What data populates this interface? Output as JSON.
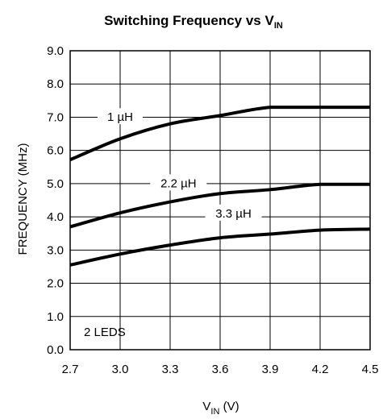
{
  "chart_data": {
    "type": "line",
    "title": "Switching Frequency vs V",
    "title_subscript": "IN",
    "xlabel": "V",
    "xlabel_subscript": "IN",
    "xlabel_unit": " (V)",
    "ylabel": "FREQUENCY (MHz)",
    "xlim": [
      2.7,
      4.5
    ],
    "ylim": [
      0.0,
      9.0
    ],
    "x_ticks": [
      2.7,
      3.0,
      3.3,
      3.6,
      3.9,
      4.2,
      4.5
    ],
    "x_tick_labels": [
      "2.7",
      "3.0",
      "3.3",
      "3.6",
      "3.9",
      "4.2",
      "4.5"
    ],
    "y_ticks": [
      0,
      1,
      2,
      3,
      4,
      5,
      6,
      7,
      8,
      9
    ],
    "y_tick_labels": [
      "0.0",
      "1.0",
      "2.0",
      "3.0",
      "4.0",
      "5.0",
      "6.0",
      "7.0",
      "8.0",
      "9.0"
    ],
    "grid": true,
    "annotation": "2 LEDS",
    "series": [
      {
        "name": "1 µH",
        "x": [
          2.7,
          3.0,
          3.3,
          3.6,
          3.9,
          4.2,
          4.5
        ],
        "y": [
          5.72,
          6.35,
          6.8,
          7.05,
          7.3,
          7.3,
          7.3
        ]
      },
      {
        "name": "2.2 µH",
        "x": [
          2.7,
          3.0,
          3.3,
          3.6,
          3.9,
          4.2,
          4.5
        ],
        "y": [
          3.7,
          4.12,
          4.45,
          4.7,
          4.82,
          4.98,
          4.98
        ]
      },
      {
        "name": "3.3 µH",
        "x": [
          2.7,
          3.0,
          3.3,
          3.6,
          3.9,
          4.2,
          4.5
        ],
        "y": [
          2.55,
          2.88,
          3.15,
          3.37,
          3.48,
          3.6,
          3.63
        ]
      }
    ]
  }
}
